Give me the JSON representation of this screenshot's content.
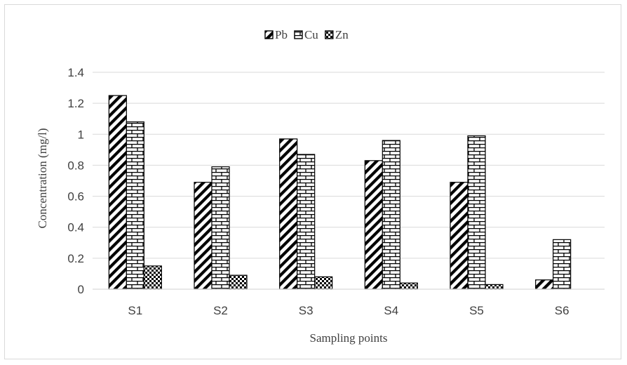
{
  "chart_data": {
    "type": "bar",
    "title": "",
    "xlabel": "Sampling points",
    "ylabel": "Concentration (mg/l)",
    "categories": [
      "S1",
      "S2",
      "S3",
      "S4",
      "S5",
      "S6"
    ],
    "ylim": [
      0,
      1.4
    ],
    "yticks": [
      "0",
      "0.2",
      "0.4",
      "0.6",
      "0.8",
      "1",
      "1.2",
      "1.4"
    ],
    "grid": true,
    "legend_position": "top-center",
    "series": [
      {
        "name": "Pb",
        "pattern": "diagonal-stripes",
        "values": [
          1.25,
          0.69,
          0.97,
          0.83,
          0.69,
          0.06
        ]
      },
      {
        "name": "Cu",
        "pattern": "bricks",
        "values": [
          1.08,
          0.79,
          0.87,
          0.96,
          0.99,
          0.32
        ]
      },
      {
        "name": "Zn",
        "pattern": "checker",
        "values": [
          0.15,
          0.09,
          0.08,
          0.04,
          0.03,
          0.0
        ]
      }
    ],
    "colors": {
      "mark": "#000000",
      "grid": "#d9d9d9",
      "text": "#404040"
    }
  }
}
